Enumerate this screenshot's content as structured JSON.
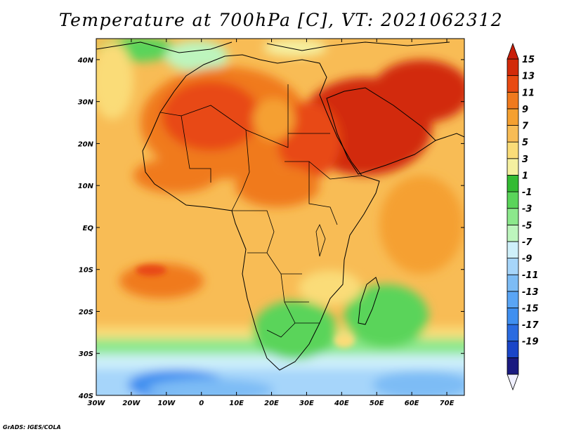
{
  "title": "Temperature at 700hPa [C], VT: 2021062312",
  "credit": "GrADS: IGES/COLA",
  "map": {
    "lon_range": [
      -30,
      75
    ],
    "lat_range": [
      -40,
      45
    ],
    "lon_ticks": [
      {
        "value": -30,
        "label": "30W"
      },
      {
        "value": -20,
        "label": "20W"
      },
      {
        "value": -10,
        "label": "10W"
      },
      {
        "value": 0,
        "label": "0"
      },
      {
        "value": 10,
        "label": "10E"
      },
      {
        "value": 20,
        "label": "20E"
      },
      {
        "value": 30,
        "label": "30E"
      },
      {
        "value": 40,
        "label": "40E"
      },
      {
        "value": 50,
        "label": "50E"
      },
      {
        "value": 60,
        "label": "60E"
      },
      {
        "value": 70,
        "label": "70E"
      }
    ],
    "lat_ticks": [
      {
        "value": 40,
        "label": "40N"
      },
      {
        "value": 30,
        "label": "30N"
      },
      {
        "value": 20,
        "label": "20N"
      },
      {
        "value": 10,
        "label": "10N"
      },
      {
        "value": 0,
        "label": "EQ"
      },
      {
        "value": -10,
        "label": "10S"
      },
      {
        "value": -20,
        "label": "20S"
      },
      {
        "value": -30,
        "label": "30S"
      },
      {
        "value": -40,
        "label": "40S"
      }
    ]
  },
  "colorbar": {
    "colors": [
      "#f0f0ff",
      "#1a1a80",
      "#1a45c8",
      "#2a6be0",
      "#3f8ff0",
      "#5aa5f5",
      "#7dbcf5",
      "#a6d5fa",
      "#cff0fa",
      "#bdf5bd",
      "#8ce88c",
      "#5ad45a",
      "#33bb33",
      "#f5f0a0",
      "#fadc78",
      "#f8bc55",
      "#f5a030",
      "#f07a1e",
      "#e84a12",
      "#d22a0a",
      "#c81e0a"
    ],
    "labels": [
      "15",
      "13",
      "11",
      "9",
      "7",
      "5",
      "3",
      "1",
      "-1",
      "-3",
      "-5",
      "-7",
      "-9",
      "-11",
      "-13",
      "-15",
      "-17",
      "-19"
    ]
  }
}
